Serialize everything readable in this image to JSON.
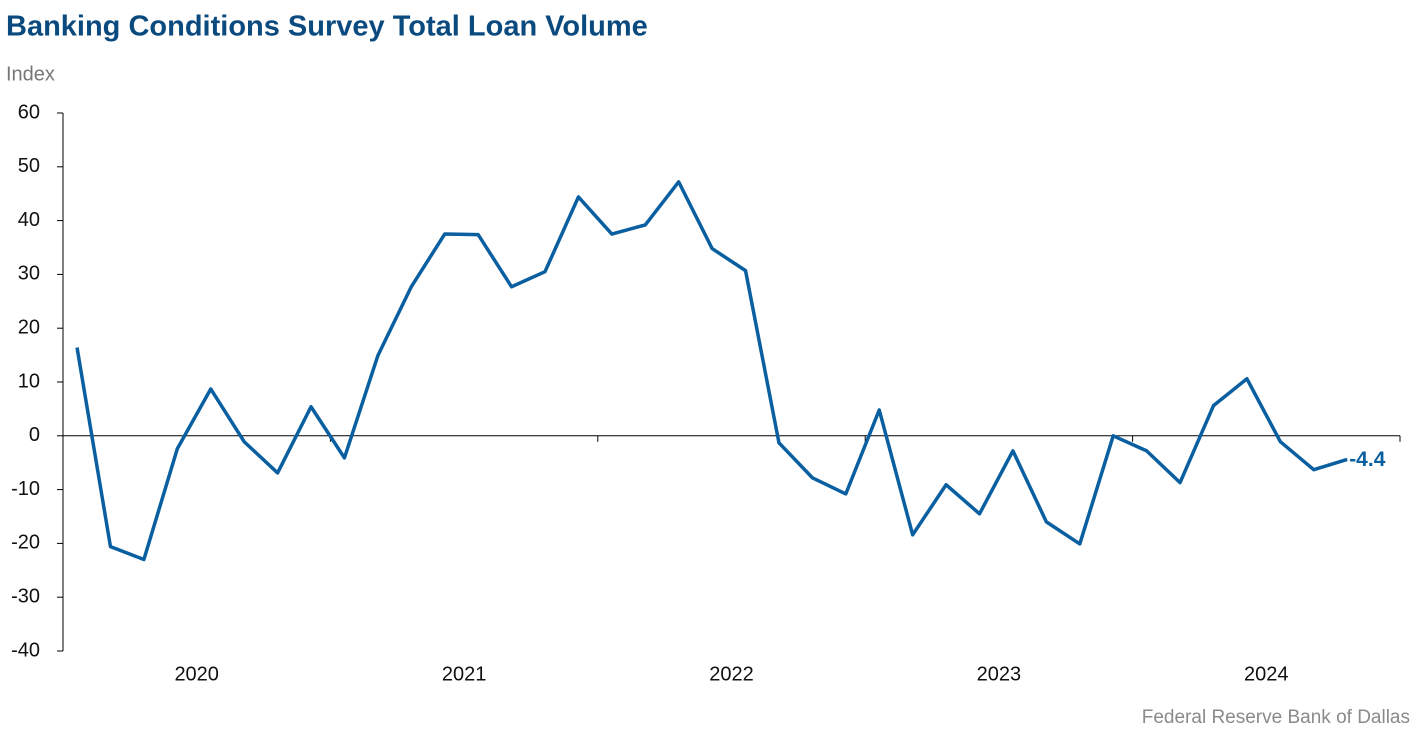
{
  "chart_data": {
    "type": "line",
    "title": "Banking Conditions Survey Total Loan Volume",
    "y_label": "Index",
    "source": "Federal Reserve Bank of Dallas",
    "categories": [
      null,
      null,
      null,
      null,
      null,
      null,
      null,
      null,
      null,
      null,
      null,
      null,
      null,
      null,
      null,
      null,
      null,
      null,
      null,
      null,
      null,
      null,
      null,
      null,
      null,
      null,
      null,
      null,
      null,
      null,
      null,
      null,
      null,
      null,
      null,
      null,
      null,
      null,
      null
    ],
    "year_labels": [
      "2020",
      "2021",
      "2022",
      "2023",
      "2024"
    ],
    "series": [
      {
        "name": "Total Loan Volume",
        "color": "#0a5fa0",
        "values": [
          16.4,
          -20.6,
          -23.0,
          -2.4,
          8.7,
          -1.1,
          -6.9,
          5.4,
          -4.1,
          14.9,
          27.7,
          37.5,
          37.4,
          27.7,
          30.5,
          44.4,
          37.5,
          39.2,
          47.2,
          34.8,
          30.7,
          -1.3,
          -7.8,
          -10.8,
          4.8,
          -18.4,
          -9.1,
          -14.5,
          -2.8,
          -16.0,
          -20.1,
          0.0,
          -2.8,
          -8.7,
          5.6,
          10.6,
          -1.1,
          -6.3,
          -4.4
        ]
      }
    ],
    "ylim": [
      -40,
      60
    ],
    "yticks": [
      -40,
      -30,
      -20,
      -10,
      0,
      10,
      20,
      30,
      40,
      50,
      60
    ],
    "grid": false,
    "label_last": true
  }
}
